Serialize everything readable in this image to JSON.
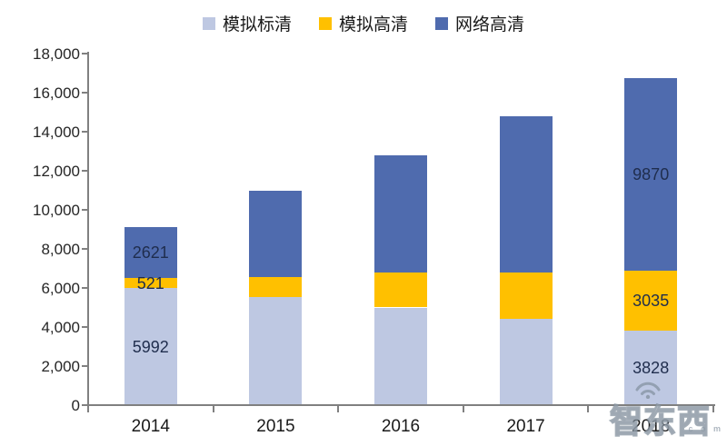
{
  "chart_data": {
    "type": "bar",
    "stacked": true,
    "title": "",
    "xlabel": "",
    "ylabel": "",
    "grid": false,
    "legend_position": "top",
    "categories": [
      "2014",
      "2015",
      "2016",
      "2017",
      "2018"
    ],
    "series": [
      {
        "name": "模拟标清",
        "color": "#BEC8E2",
        "values": [
          5992,
          5550,
          5000,
          4400,
          3828
        ]
      },
      {
        "name": "模拟高清",
        "color": "#FFC000",
        "values": [
          521,
          1000,
          1800,
          2400,
          3035
        ]
      },
      {
        "name": "网络高清",
        "color": "#4F6BAE",
        "values": [
          2621,
          4450,
          6000,
          8000,
          9870
        ]
      }
    ],
    "totals": [
      9134,
      11000,
      12800,
      14800,
      16733
    ],
    "labeled_category_indexes": [
      0,
      4
    ],
    "data_labels": {
      "2014": {
        "模拟标清": "5992",
        "模拟高清": "521",
        "网络高清": "2621"
      },
      "2018": {
        "模拟标清": "3828",
        "模拟高清": "3035",
        "网络高清": "9870"
      }
    },
    "y_axis": {
      "min": 0,
      "max": 18000,
      "step": 2000,
      "tick_labels": [
        "0",
        "2,000",
        "4,000",
        "6,000",
        "8,000",
        "10,000",
        "12,000",
        "14,000",
        "16,000",
        "18,000"
      ]
    }
  },
  "watermark": {
    "text": "智东西",
    "suffix": "c o m",
    "icon": "wifi-arcs-icon"
  },
  "colors": {
    "axis": "#808080",
    "bar_label_text": "#1F2D4D",
    "tick_text": "#262626",
    "series_standard": "#BEC8E2",
    "series_analog_hd": "#FFC000",
    "series_network_hd": "#4F6BAE"
  }
}
